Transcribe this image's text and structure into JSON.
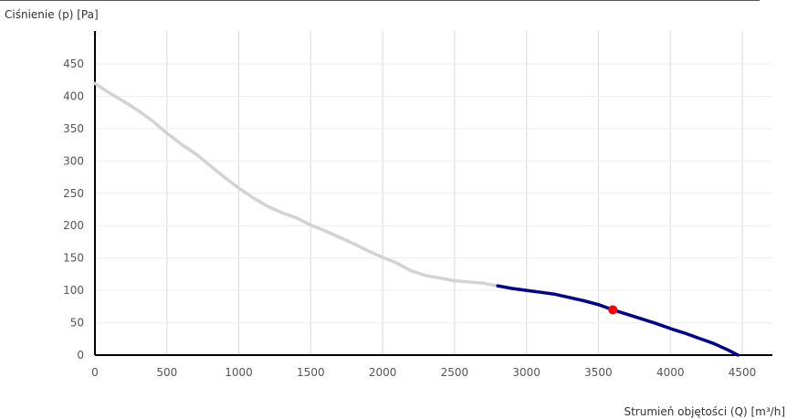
{
  "chart_data": {
    "type": "line",
    "ylabel": "Ciśnienie (p) [Pa]",
    "xlabel": "Strumień objętości (Q) [m³/h]",
    "xlim": [
      0,
      4500
    ],
    "ylim": [
      0,
      450
    ],
    "x_ticks": [
      "0",
      "500",
      "1000",
      "1500",
      "2000",
      "2500",
      "3000",
      "3500",
      "4000",
      "4500"
    ],
    "y_ticks": [
      "0",
      "50",
      "100",
      "150",
      "200",
      "250",
      "300",
      "350",
      "400",
      "450"
    ],
    "grid": true,
    "series": [
      {
        "color": "#d3d3d3",
        "points": [
          [
            0,
            420
          ],
          [
            100,
            405
          ],
          [
            200,
            392
          ],
          [
            300,
            378
          ],
          [
            400,
            362
          ],
          [
            500,
            343
          ],
          [
            600,
            326
          ],
          [
            700,
            311
          ],
          [
            800,
            293
          ],
          [
            900,
            275
          ],
          [
            1000,
            258
          ],
          [
            1100,
            243
          ],
          [
            1200,
            230
          ],
          [
            1300,
            220
          ],
          [
            1400,
            212
          ],
          [
            1500,
            201
          ],
          [
            1600,
            192
          ],
          [
            1700,
            182
          ],
          [
            1800,
            172
          ],
          [
            1900,
            161
          ],
          [
            2000,
            151
          ],
          [
            2100,
            142
          ],
          [
            2200,
            130
          ],
          [
            2300,
            123
          ],
          [
            2400,
            119
          ],
          [
            2500,
            115
          ],
          [
            2600,
            113
          ],
          [
            2700,
            111
          ],
          [
            2800,
            107
          ]
        ]
      },
      {
        "color": "#00008b",
        "points": [
          [
            2800,
            107
          ],
          [
            2900,
            103
          ],
          [
            3000,
            100
          ],
          [
            3100,
            97
          ],
          [
            3200,
            94
          ],
          [
            3300,
            89
          ],
          [
            3400,
            84
          ],
          [
            3500,
            78
          ],
          [
            3600,
            70
          ],
          [
            3700,
            63
          ],
          [
            3800,
            56
          ],
          [
            3900,
            49
          ],
          [
            4000,
            41
          ],
          [
            4100,
            34
          ],
          [
            4200,
            26
          ],
          [
            4300,
            18
          ],
          [
            4400,
            8
          ],
          [
            4470,
            0
          ]
        ]
      }
    ],
    "operating_point": {
      "x": 3600,
      "y": 70,
      "color": "#ff0000"
    }
  }
}
